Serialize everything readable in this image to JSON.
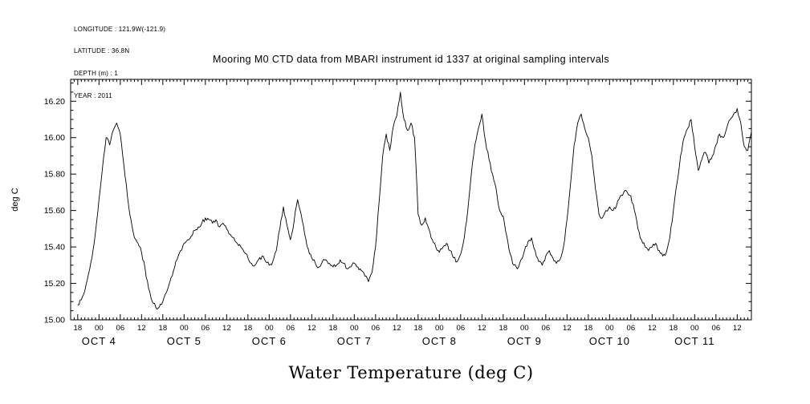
{
  "metadata": {
    "lines": [
      "LONGITUDE : 121.9W(-121.9)",
      "LATITUDE : 36.8N",
      "DEPTH (m) : 1",
      "YEAR : 2011"
    ]
  },
  "chart_data": {
    "type": "line",
    "title": "Mooring M0 CTD data from MBARI instrument id 1337 at original sampling intervals",
    "xlabel": "Water Temperature (deg C)",
    "ylabel": "deg C",
    "legend": "none",
    "grid": false,
    "x_axis": {
      "description": "time, hours since 2011-10-03 18:00",
      "range": [
        -2,
        190
      ],
      "tick_interval_hours": 6,
      "tick_labels": [
        "18",
        "00",
        "06",
        "12",
        "18",
        "00",
        "06",
        "12",
        "18",
        "00",
        "06",
        "12",
        "18",
        "00",
        "06",
        "12",
        "18",
        "00",
        "06",
        "12",
        "18",
        "00",
        "06",
        "12",
        "18",
        "00",
        "06",
        "12",
        "18",
        "00",
        "06",
        "12"
      ],
      "day_labels": [
        {
          "label": "OCT 4",
          "hour": 6
        },
        {
          "label": "OCT 5",
          "hour": 30
        },
        {
          "label": "OCT 6",
          "hour": 54
        },
        {
          "label": "OCT 7",
          "hour": 78
        },
        {
          "label": "OCT 8",
          "hour": 102
        },
        {
          "label": "OCT 9",
          "hour": 126
        },
        {
          "label": "OCT 10",
          "hour": 150
        },
        {
          "label": "OCT 11",
          "hour": 174
        }
      ]
    },
    "y_axis": {
      "range": [
        15.0,
        16.32
      ],
      "minor_tick_step": 0.05,
      "ticks": [
        {
          "value": 15.0,
          "label": "15.00"
        },
        {
          "value": 15.2,
          "label": "15.20"
        },
        {
          "value": 15.4,
          "label": "15.40"
        },
        {
          "value": 15.6,
          "label": "15.60"
        },
        {
          "value": 15.8,
          "label": "15.80"
        },
        {
          "value": 16.0,
          "label": "16.00"
        },
        {
          "value": 16.2,
          "label": "16.20"
        }
      ]
    },
    "series": [
      {
        "name": "Water Temperature",
        "units": "deg C",
        "color": "#000000",
        "points": [
          [
            0,
            15.08
          ],
          [
            1,
            15.11
          ],
          [
            2,
            15.16
          ],
          [
            3,
            15.25
          ],
          [
            4,
            15.34
          ],
          [
            5,
            15.48
          ],
          [
            6,
            15.66
          ],
          [
            7,
            15.84
          ],
          [
            8,
            16.0
          ],
          [
            9,
            15.96
          ],
          [
            10,
            16.04
          ],
          [
            11,
            16.08
          ],
          [
            12,
            16.02
          ],
          [
            13,
            15.85
          ],
          [
            14,
            15.68
          ],
          [
            15,
            15.55
          ],
          [
            16,
            15.45
          ],
          [
            17,
            15.42
          ],
          [
            18,
            15.37
          ],
          [
            19,
            15.28
          ],
          [
            20,
            15.17
          ],
          [
            21,
            15.1
          ],
          [
            22,
            15.07
          ],
          [
            23,
            15.07
          ],
          [
            24,
            15.1
          ],
          [
            25,
            15.15
          ],
          [
            26,
            15.21
          ],
          [
            27,
            15.27
          ],
          [
            28,
            15.33
          ],
          [
            29,
            15.38
          ],
          [
            30,
            15.42
          ],
          [
            31,
            15.44
          ],
          [
            32,
            15.46
          ],
          [
            33,
            15.49
          ],
          [
            34,
            15.51
          ],
          [
            35,
            15.53
          ],
          [
            36,
            15.56
          ],
          [
            37,
            15.55
          ],
          [
            38,
            15.53
          ],
          [
            39,
            15.55
          ],
          [
            40,
            15.51
          ],
          [
            41,
            15.53
          ],
          [
            42,
            15.5
          ],
          [
            43,
            15.47
          ],
          [
            44,
            15.45
          ],
          [
            45,
            15.42
          ],
          [
            46,
            15.4
          ],
          [
            47,
            15.37
          ],
          [
            48,
            15.34
          ],
          [
            49,
            15.31
          ],
          [
            50,
            15.3
          ],
          [
            51,
            15.33
          ],
          [
            52,
            15.35
          ],
          [
            53,
            15.32
          ],
          [
            54,
            15.3
          ],
          [
            55,
            15.32
          ],
          [
            56,
            15.38
          ],
          [
            57,
            15.5
          ],
          [
            58,
            15.62
          ],
          [
            59,
            15.52
          ],
          [
            60,
            15.44
          ],
          [
            61,
            15.54
          ],
          [
            62,
            15.66
          ],
          [
            63,
            15.58
          ],
          [
            64,
            15.47
          ],
          [
            65,
            15.39
          ],
          [
            66,
            15.34
          ],
          [
            67,
            15.31
          ],
          [
            68,
            15.29
          ],
          [
            69,
            15.32
          ],
          [
            70,
            15.33
          ],
          [
            71,
            15.31
          ],
          [
            72,
            15.29
          ],
          [
            73,
            15.3
          ],
          [
            74,
            15.33
          ],
          [
            75,
            15.31
          ],
          [
            76,
            15.28
          ],
          [
            77,
            15.29
          ],
          [
            78,
            15.31
          ],
          [
            79,
            15.29
          ],
          [
            80,
            15.27
          ],
          [
            81,
            15.24
          ],
          [
            82,
            15.21
          ],
          [
            83,
            15.26
          ],
          [
            84,
            15.4
          ],
          [
            85,
            15.65
          ],
          [
            86,
            15.9
          ],
          [
            87,
            16.02
          ],
          [
            88,
            15.93
          ],
          [
            89,
            16.06
          ],
          [
            90,
            16.12
          ],
          [
            91,
            16.25
          ],
          [
            92,
            16.1
          ],
          [
            93,
            16.04
          ],
          [
            94,
            16.08
          ],
          [
            95,
            16.0
          ],
          [
            96,
            15.58
          ],
          [
            97,
            15.52
          ],
          [
            98,
            15.56
          ],
          [
            99,
            15.5
          ],
          [
            100,
            15.44
          ],
          [
            101,
            15.4
          ],
          [
            102,
            15.37
          ],
          [
            103,
            15.4
          ],
          [
            104,
            15.42
          ],
          [
            105,
            15.38
          ],
          [
            106,
            15.34
          ],
          [
            107,
            15.32
          ],
          [
            108,
            15.36
          ],
          [
            109,
            15.45
          ],
          [
            110,
            15.6
          ],
          [
            111,
            15.8
          ],
          [
            112,
            15.96
          ],
          [
            113,
            16.05
          ],
          [
            114,
            16.13
          ],
          [
            115,
            15.98
          ],
          [
            116,
            15.88
          ],
          [
            117,
            15.8
          ],
          [
            118,
            15.72
          ],
          [
            119,
            15.6
          ],
          [
            120,
            15.57
          ],
          [
            121,
            15.46
          ],
          [
            122,
            15.36
          ],
          [
            123,
            15.3
          ],
          [
            124,
            15.28
          ],
          [
            125,
            15.33
          ],
          [
            126,
            15.38
          ],
          [
            127,
            15.43
          ],
          [
            128,
            15.45
          ],
          [
            129,
            15.38
          ],
          [
            130,
            15.32
          ],
          [
            131,
            15.3
          ],
          [
            132,
            15.35
          ],
          [
            133,
            15.38
          ],
          [
            134,
            15.34
          ],
          [
            135,
            15.31
          ],
          [
            136,
            15.33
          ],
          [
            137,
            15.4
          ],
          [
            138,
            15.55
          ],
          [
            139,
            15.75
          ],
          [
            140,
            15.96
          ],
          [
            141,
            16.08
          ],
          [
            142,
            16.13
          ],
          [
            143,
            16.05
          ],
          [
            144,
            16.0
          ],
          [
            145,
            15.9
          ],
          [
            146,
            15.72
          ],
          [
            147,
            15.58
          ],
          [
            148,
            15.56
          ],
          [
            149,
            15.6
          ],
          [
            150,
            15.62
          ],
          [
            151,
            15.6
          ],
          [
            152,
            15.63
          ],
          [
            153,
            15.68
          ],
          [
            154,
            15.7
          ],
          [
            155,
            15.7
          ],
          [
            156,
            15.68
          ],
          [
            157,
            15.6
          ],
          [
            158,
            15.5
          ],
          [
            159,
            15.44
          ],
          [
            160,
            15.4
          ],
          [
            161,
            15.38
          ],
          [
            162,
            15.4
          ],
          [
            163,
            15.42
          ],
          [
            164,
            15.38
          ],
          [
            165,
            15.35
          ],
          [
            166,
            15.37
          ],
          [
            167,
            15.45
          ],
          [
            168,
            15.6
          ],
          [
            169,
            15.75
          ],
          [
            170,
            15.9
          ],
          [
            171,
            16.0
          ],
          [
            172,
            16.05
          ],
          [
            173,
            16.1
          ],
          [
            174,
            15.95
          ],
          [
            175,
            15.82
          ],
          [
            176,
            15.88
          ],
          [
            177,
            15.92
          ],
          [
            178,
            15.86
          ],
          [
            179,
            15.9
          ],
          [
            180,
            15.96
          ],
          [
            181,
            16.02
          ],
          [
            182,
            16.0
          ],
          [
            183,
            16.05
          ],
          [
            184,
            16.1
          ],
          [
            185,
            16.13
          ],
          [
            186,
            16.16
          ],
          [
            187,
            16.08
          ],
          [
            188,
            15.95
          ],
          [
            189,
            15.93
          ],
          [
            190,
            16.03
          ]
        ]
      }
    ]
  }
}
